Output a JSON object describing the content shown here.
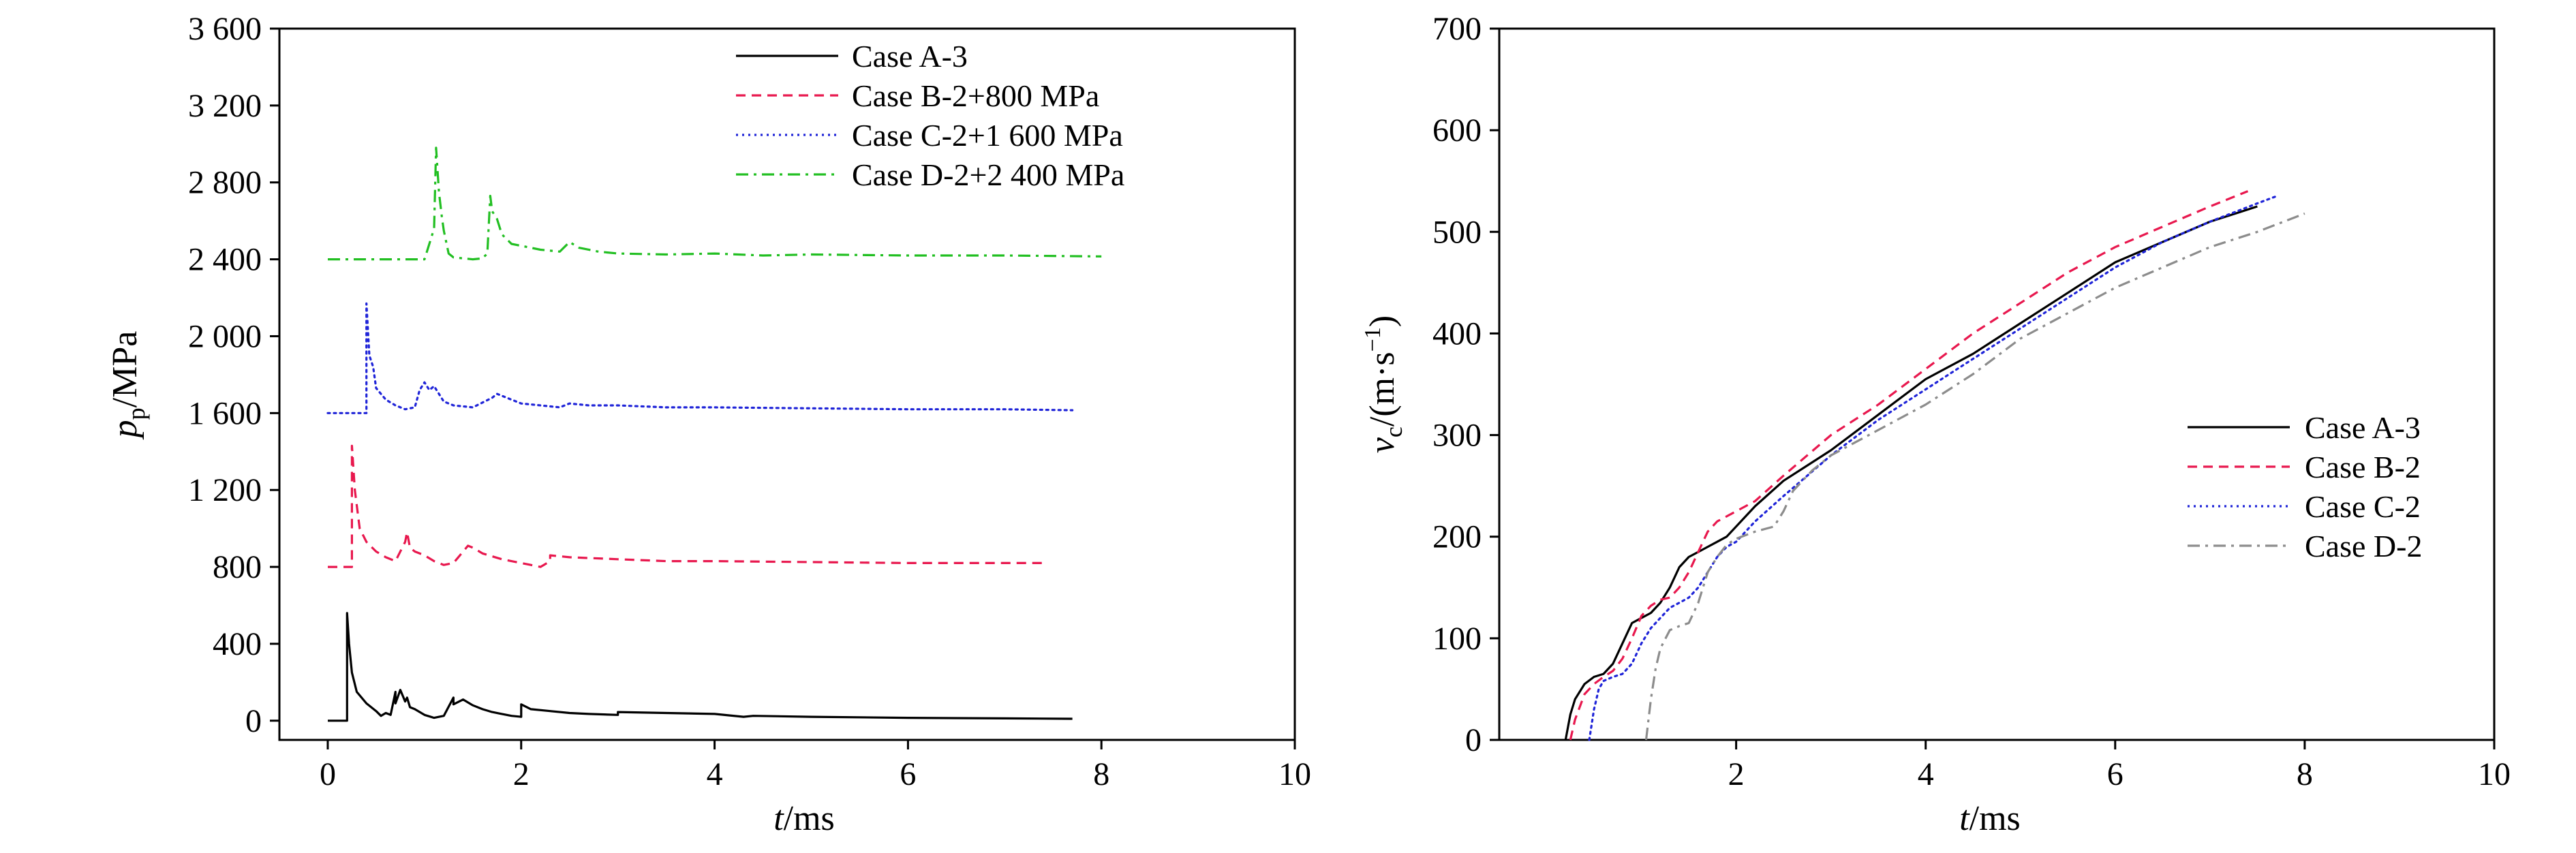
{
  "chart_data": [
    {
      "type": "line",
      "xlabel": "t/ms",
      "ylabel": "p_p/MPa",
      "xlim": [
        -0.5,
        10
      ],
      "ylim": [
        -100,
        3600
      ],
      "xticks": [
        0,
        2,
        4,
        6,
        8,
        10
      ],
      "xtick_labels": [
        "0",
        "2",
        "4",
        "6",
        "8",
        "10"
      ],
      "yticks": [
        0,
        400,
        800,
        1200,
        1600,
        2000,
        2400,
        2800,
        3200,
        3600
      ],
      "ytick_labels": [
        "0",
        "400",
        "800",
        "1 200",
        "1 600",
        "2 000",
        "2 400",
        "2 800",
        "3 200",
        "3 600"
      ],
      "legend_position": "top-right",
      "series": [
        {
          "name": "Case A-3",
          "color": "#000000",
          "dash": "solid",
          "x": [
            0,
            0.18,
            0.2,
            0.2,
            0.22,
            0.25,
            0.3,
            0.4,
            0.5,
            0.55,
            0.6,
            0.65,
            0.7,
            0.7,
            0.75,
            0.8,
            0.82,
            0.85,
            0.9,
            1.0,
            1.1,
            1.2,
            1.3,
            1.3,
            1.4,
            1.5,
            1.6,
            1.7,
            1.8,
            1.9,
            2.0,
            2.0,
            2.1,
            2.3,
            2.5,
            2.7,
            3.0,
            3.0,
            3.5,
            4.0,
            4.3,
            4.4,
            5.0,
            6.0,
            7.0,
            7.7
          ],
          "values": [
            0,
            0,
            0,
            560,
            400,
            250,
            150,
            90,
            50,
            25,
            40,
            30,
            150,
            90,
            160,
            100,
            120,
            70,
            60,
            30,
            15,
            25,
            120,
            85,
            110,
            80,
            60,
            45,
            35,
            25,
            20,
            85,
            60,
            50,
            40,
            35,
            30,
            45,
            40,
            35,
            20,
            25,
            20,
            15,
            12,
            10
          ]
        },
        {
          "name": "Case B-2+800 MPa",
          "color": "#e8184e",
          "dash": "dashed",
          "x": [
            0,
            0.22,
            0.25,
            0.25,
            0.28,
            0.33,
            0.4,
            0.5,
            0.6,
            0.7,
            0.8,
            0.82,
            0.85,
            0.9,
            1.0,
            1.1,
            1.2,
            1.3,
            1.4,
            1.45,
            1.5,
            1.6,
            1.8,
            2.0,
            2.1,
            2.2,
            2.3,
            2.3,
            2.5,
            3.0,
            3.5,
            4.0,
            5.0,
            6.0,
            7.0,
            7.4
          ],
          "values": [
            800,
            800,
            800,
            1430,
            1200,
            1000,
            930,
            880,
            850,
            830,
            930,
            980,
            900,
            880,
            860,
            830,
            810,
            820,
            880,
            910,
            900,
            870,
            840,
            820,
            810,
            800,
            830,
            860,
            850,
            840,
            830,
            830,
            825,
            820,
            820,
            820
          ]
        },
        {
          "name": "Case C-2+1 600 MPa",
          "color": "#1f24d8",
          "dash": "dotted",
          "x": [
            0,
            0.38,
            0.4,
            0.4,
            0.43,
            0.47,
            0.5,
            0.55,
            0.6,
            0.7,
            0.8,
            0.9,
            0.95,
            1.0,
            1.05,
            1.1,
            1.15,
            1.2,
            1.3,
            1.5,
            1.7,
            1.75,
            1.8,
            1.9,
            2.0,
            2.2,
            2.4,
            2.5,
            2.7,
            3.0,
            3.5,
            4.0,
            5.0,
            6.0,
            7.0,
            7.7
          ],
          "values": [
            1600,
            1600,
            1600,
            2170,
            1900,
            1840,
            1730,
            1700,
            1670,
            1640,
            1620,
            1630,
            1720,
            1760,
            1720,
            1740,
            1700,
            1660,
            1640,
            1630,
            1680,
            1700,
            1690,
            1670,
            1650,
            1640,
            1630,
            1650,
            1640,
            1640,
            1630,
            1630,
            1625,
            1620,
            1620,
            1615
          ]
        },
        {
          "name": "Case D-2+2 400 MPa",
          "color": "#22bf22",
          "dash": "dashdot",
          "x": [
            0,
            0.9,
            1.0,
            1.05,
            1.1,
            1.12,
            1.15,
            1.18,
            1.2,
            1.25,
            1.3,
            1.4,
            1.5,
            1.6,
            1.65,
            1.68,
            1.7,
            1.75,
            1.8,
            1.9,
            2.0,
            2.2,
            2.4,
            2.5,
            2.6,
            2.8,
            3.0,
            3.5,
            4.0,
            4.5,
            5.0,
            6.0,
            7.0,
            8.0
          ],
          "values": [
            2400,
            2400,
            2400,
            2480,
            2560,
            2980,
            2750,
            2620,
            2550,
            2430,
            2410,
            2405,
            2400,
            2405,
            2430,
            2730,
            2650,
            2610,
            2530,
            2480,
            2470,
            2450,
            2440,
            2490,
            2460,
            2440,
            2430,
            2425,
            2430,
            2420,
            2425,
            2420,
            2420,
            2415
          ]
        }
      ]
    },
    {
      "type": "line",
      "xlabel": "t/ms",
      "ylabel": "v_c/(m·s^-1)",
      "xlim": [
        -0.5,
        10
      ],
      "ylim": [
        0,
        700
      ],
      "xticks": [
        2,
        4,
        6,
        8,
        10
      ],
      "xtick_labels": [
        "2",
        "4",
        "6",
        "8",
        "10"
      ],
      "yticks": [
        0,
        100,
        200,
        300,
        400,
        500,
        600,
        700
      ],
      "ytick_labels": [
        "0",
        "100",
        "200",
        "300",
        "400",
        "500",
        "600",
        "700"
      ],
      "legend_position": "lower-right",
      "series": [
        {
          "name": "Case A-3",
          "color": "#000000",
          "dash": "solid",
          "x": [
            0.2,
            0.25,
            0.3,
            0.4,
            0.5,
            0.6,
            0.7,
            0.8,
            0.9,
            1.0,
            1.1,
            1.2,
            1.3,
            1.4,
            1.5,
            1.6,
            1.7,
            1.8,
            1.9,
            2.0,
            2.2,
            2.5,
            3.0,
            3.5,
            4.0,
            4.5,
            5.0,
            5.5,
            6.0,
            6.5,
            7.0,
            7.5
          ],
          "values": [
            0,
            25,
            40,
            55,
            62,
            65,
            75,
            95,
            115,
            120,
            125,
            135,
            150,
            170,
            180,
            185,
            190,
            195,
            200,
            210,
            230,
            255,
            285,
            320,
            355,
            380,
            410,
            440,
            470,
            490,
            510,
            525
          ]
        },
        {
          "name": "Case B-2",
          "color": "#e8184e",
          "dash": "dashed",
          "x": [
            0.25,
            0.3,
            0.4,
            0.5,
            0.6,
            0.7,
            0.8,
            0.9,
            1.0,
            1.1,
            1.2,
            1.3,
            1.4,
            1.5,
            1.6,
            1.7,
            1.8,
            1.9,
            2.0,
            2.2,
            2.5,
            3.0,
            3.5,
            4.0,
            4.5,
            5.0,
            5.5,
            6.0,
            6.5,
            7.0,
            7.4
          ],
          "values": [
            0,
            20,
            45,
            55,
            62,
            68,
            80,
            100,
            122,
            132,
            138,
            140,
            150,
            165,
            185,
            205,
            215,
            220,
            225,
            235,
            260,
            300,
            330,
            365,
            400,
            430,
            460,
            485,
            505,
            525,
            540
          ]
        },
        {
          "name": "Case C-2",
          "color": "#1f24d8",
          "dash": "dotted",
          "x": [
            0.45,
            0.5,
            0.55,
            0.6,
            0.7,
            0.8,
            0.9,
            1.0,
            1.1,
            1.2,
            1.3,
            1.4,
            1.5,
            1.6,
            1.7,
            1.8,
            1.9,
            2.0,
            2.2,
            2.5,
            3.0,
            3.5,
            4.0,
            4.5,
            5.0,
            5.5,
            6.0,
            6.5,
            7.0,
            7.5,
            7.7
          ],
          "values": [
            0,
            30,
            50,
            58,
            62,
            65,
            75,
            95,
            110,
            120,
            130,
            135,
            140,
            150,
            165,
            180,
            190,
            195,
            215,
            240,
            280,
            315,
            345,
            375,
            405,
            435,
            465,
            490,
            510,
            528,
            535
          ]
        },
        {
          "name": "Case D-2",
          "color": "#8c8c8c",
          "dash": "dashdot",
          "x": [
            1.05,
            1.1,
            1.15,
            1.2,
            1.3,
            1.4,
            1.5,
            1.6,
            1.7,
            1.8,
            1.9,
            2.0,
            2.2,
            2.4,
            2.5,
            2.6,
            2.8,
            3.0,
            3.5,
            4.0,
            4.5,
            5.0,
            5.5,
            6.0,
            6.5,
            7.0,
            7.5,
            8.0
          ],
          "values": [
            0,
            40,
            70,
            90,
            108,
            112,
            115,
            135,
            165,
            180,
            192,
            198,
            205,
            210,
            225,
            245,
            265,
            280,
            305,
            330,
            360,
            395,
            420,
            445,
            465,
            485,
            500,
            518
          ]
        }
      ]
    }
  ]
}
